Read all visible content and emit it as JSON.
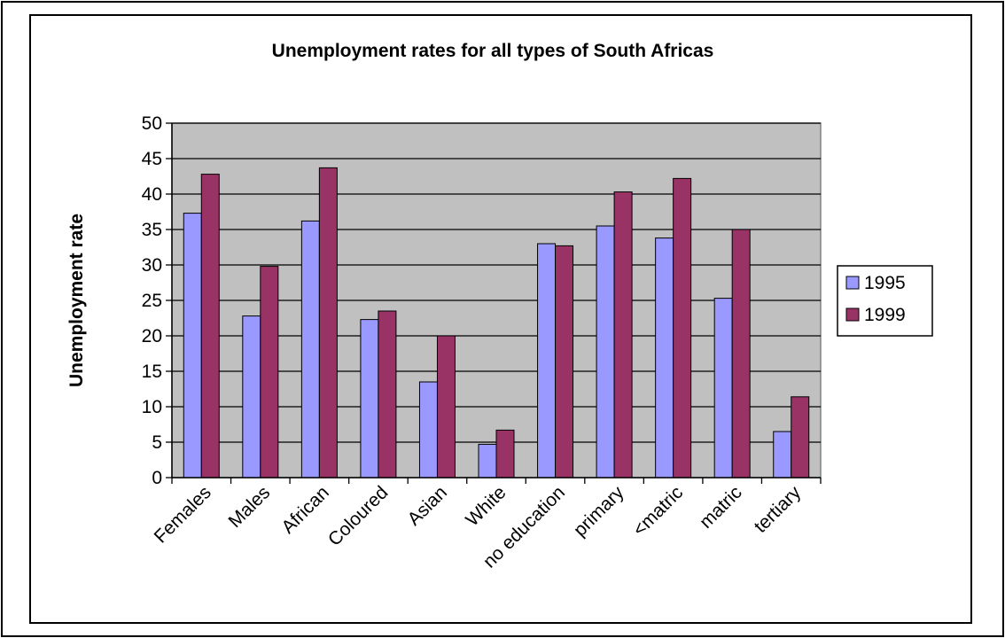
{
  "chart_data": {
    "type": "bar",
    "title": "Unemployment rates for all types of South Africas",
    "xlabel": "",
    "ylabel": "Unemployment rate",
    "ylim": [
      0,
      50
    ],
    "yticks": [
      0,
      5,
      10,
      15,
      20,
      25,
      30,
      35,
      40,
      45,
      50
    ],
    "grid": true,
    "legend": "right",
    "categories": [
      "Females",
      "Males",
      "African",
      "Coloured",
      "Asian",
      "White",
      "no education",
      "primary",
      "<matric",
      "matric",
      "tertiary"
    ],
    "series": [
      {
        "name": "1995",
        "color": "#9999ff",
        "values": [
          37.3,
          22.8,
          36.2,
          22.3,
          13.5,
          4.7,
          33.0,
          35.5,
          33.8,
          25.3,
          6.5
        ]
      },
      {
        "name": "1999",
        "color": "#993366",
        "values": [
          42.8,
          29.8,
          43.7,
          23.5,
          20.0,
          6.7,
          32.7,
          40.3,
          42.2,
          35.0,
          11.4
        ]
      }
    ],
    "plot_background": "#c0c0c0"
  }
}
